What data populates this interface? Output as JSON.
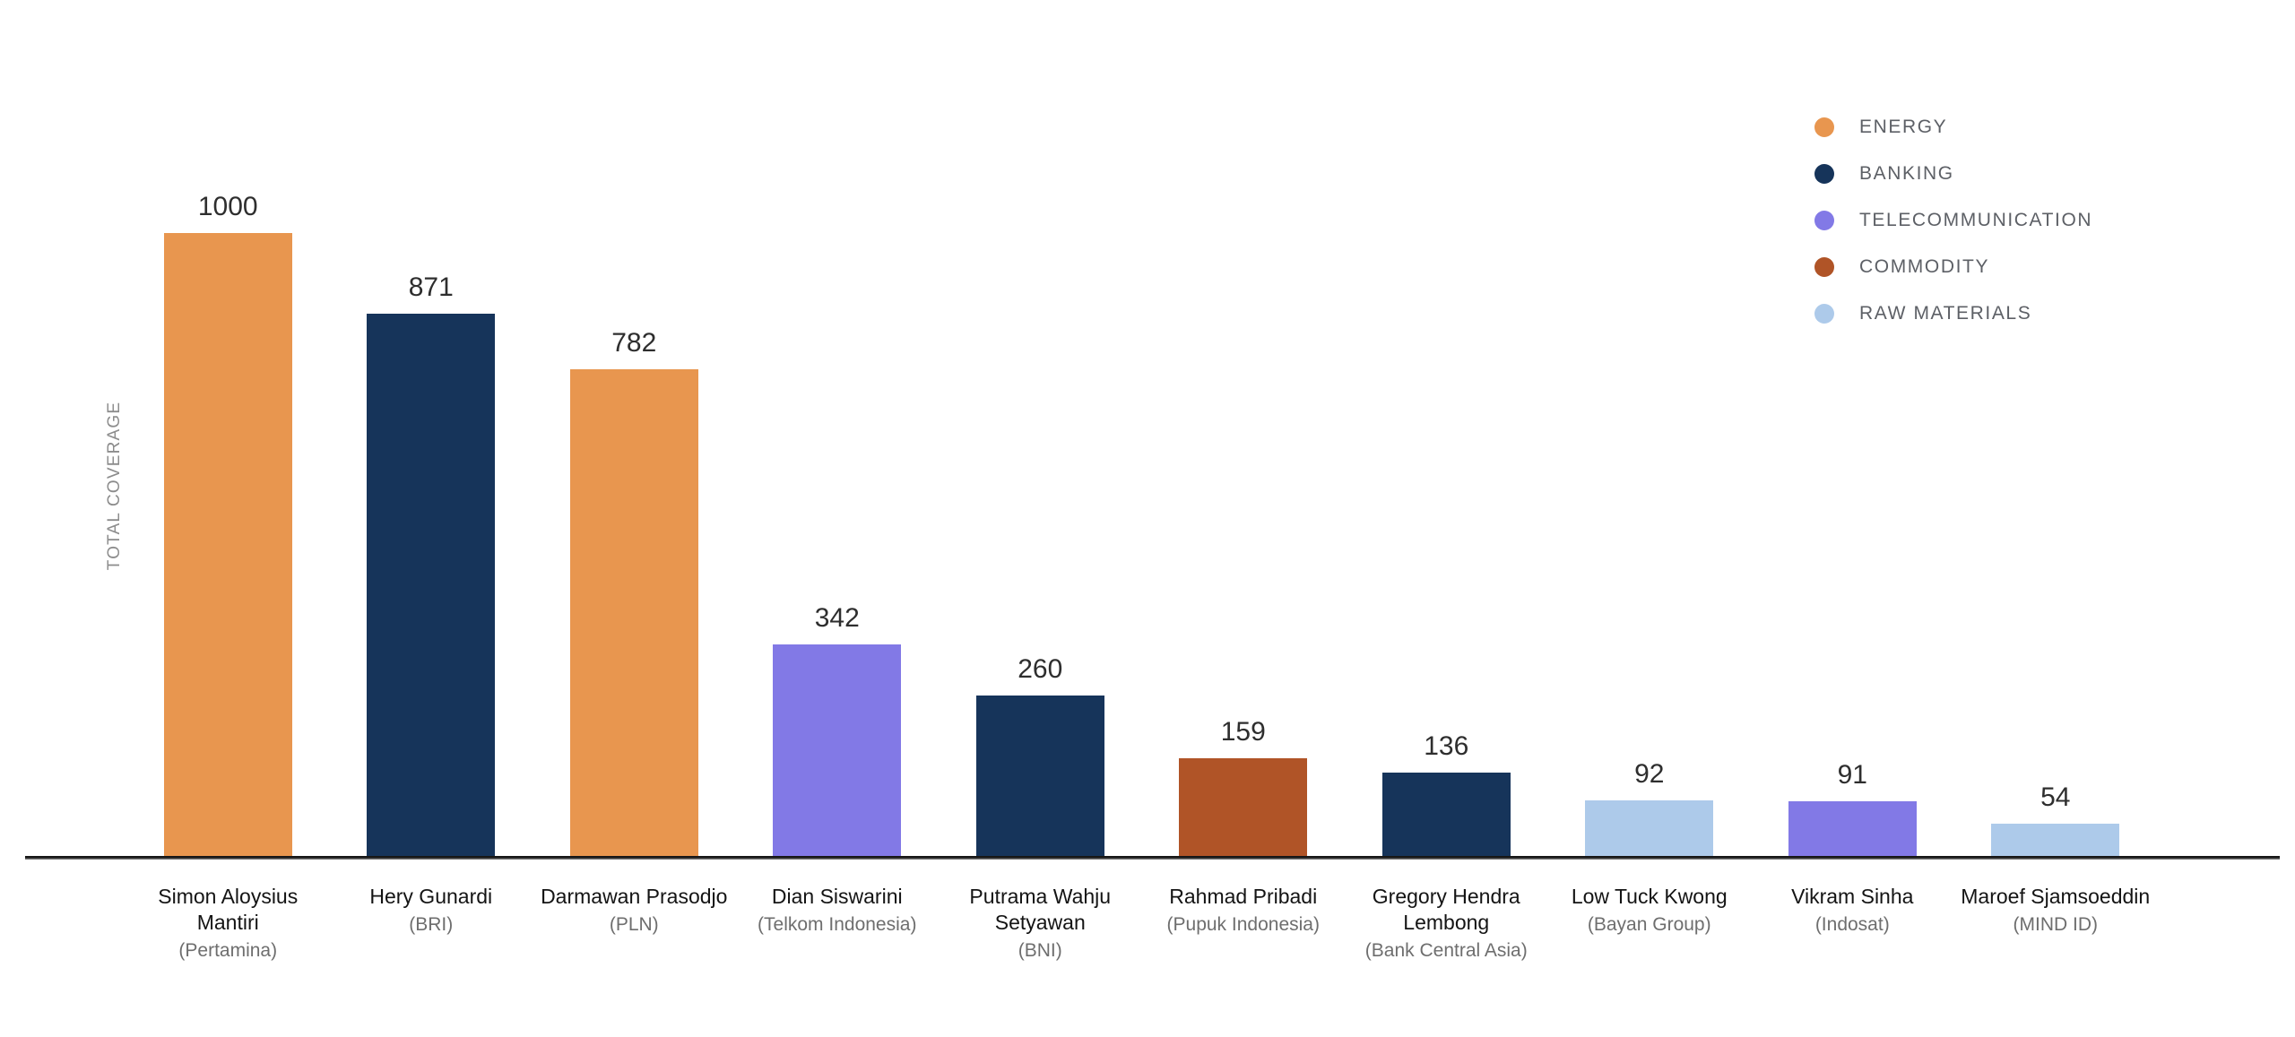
{
  "chart_data": {
    "type": "bar",
    "title": "",
    "xlabel": "",
    "ylabel": "TOTAL COVERAGE",
    "ylim": [
      0,
      1050
    ],
    "grid": false,
    "legend_position": "top-right",
    "legend": [
      {
        "label": "ENERGY",
        "color": "#E8964F"
      },
      {
        "label": "BANKING",
        "color": "#16345A"
      },
      {
        "label": "TELECOMMUNICATION",
        "color": "#8279E6"
      },
      {
        "label": "COMMODITY",
        "color": "#B05427"
      },
      {
        "label": "RAW MATERIALS",
        "color": "#ADCAEA"
      }
    ],
    "categories": [
      "Simon Aloysius Mantiri",
      "Hery Gunardi",
      "Darmawan Prasodjo",
      "Dian Siswarini",
      "Putrama Wahju Setyawan",
      "Rahmad Pribadi",
      "Gregory Hendra Lembong",
      "Low Tuck Kwong",
      "Vikram Sinha",
      "Maroef Sjamsoeddin"
    ],
    "values": [
      1000,
      871,
      782,
      342,
      260,
      159,
      136,
      92,
      91,
      54
    ],
    "points": [
      {
        "name": "Simon Aloysius Mantiri",
        "company": "(Pertamina)",
        "value": "1000",
        "sector": "ENERGY"
      },
      {
        "name": "Hery Gunardi",
        "company": "(BRI)",
        "value": "871",
        "sector": "BANKING"
      },
      {
        "name": "Darmawan Prasodjo",
        "company": "(PLN)",
        "value": "782",
        "sector": "ENERGY"
      },
      {
        "name": "Dian Siswarini",
        "company": "(Telkom Indonesia)",
        "value": "342",
        "sector": "TELECOMMUNICATION"
      },
      {
        "name": "Putrama Wahju Setyawan",
        "company": "(BNI)",
        "value": "260",
        "sector": "BANKING"
      },
      {
        "name": "Rahmad Pribadi",
        "company": "(Pupuk Indonesia)",
        "value": "159",
        "sector": "COMMODITY"
      },
      {
        "name": "Gregory Hendra Lembong",
        "company": "(Bank Central Asia)",
        "value": "136",
        "sector": "BANKING"
      },
      {
        "name": "Low Tuck Kwong",
        "company": "(Bayan Group)",
        "value": "92",
        "sector": "RAW MATERIALS"
      },
      {
        "name": "Vikram Sinha",
        "company": "(Indosat)",
        "value": "91",
        "sector": "TELECOMMUNICATION"
      },
      {
        "name": "Maroef Sjamsoeddin",
        "company": "(MIND ID)",
        "value": "54",
        "sector": "RAW MATERIALS"
      }
    ]
  }
}
